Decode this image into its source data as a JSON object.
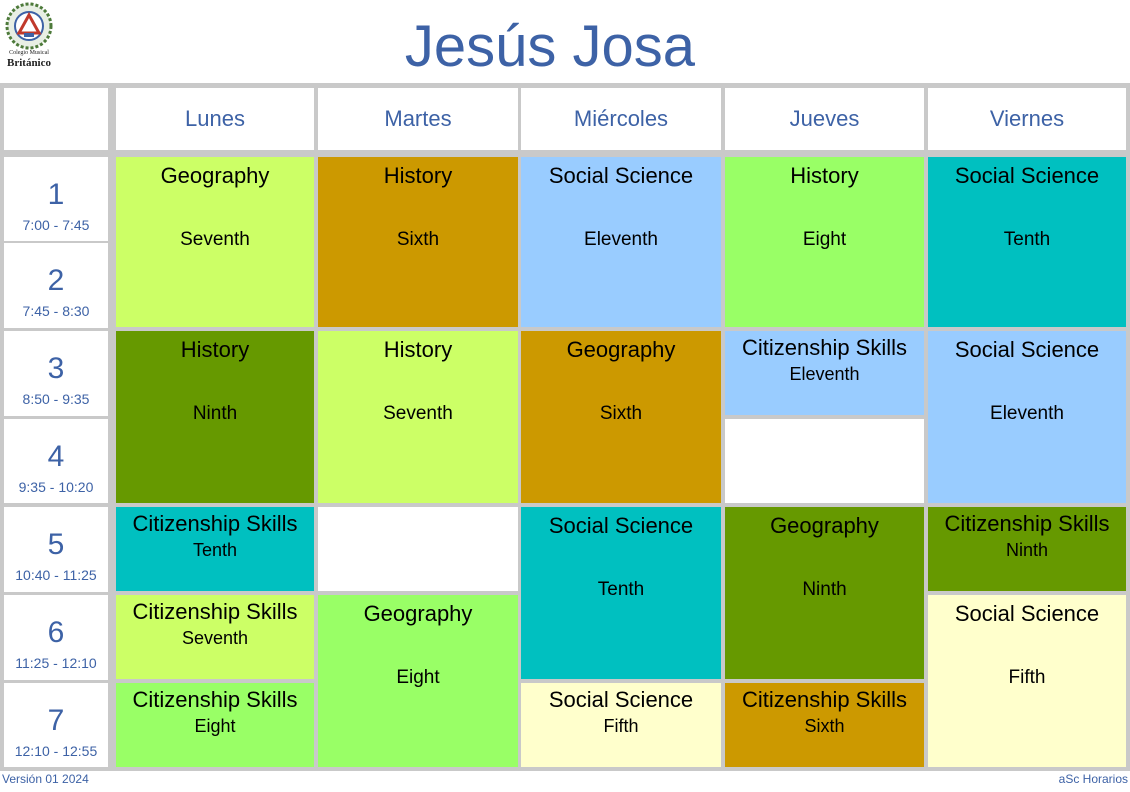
{
  "header": {
    "title": "Jesús Josa",
    "logo_line1": "Colegio Musical",
    "logo_line2": "Británico"
  },
  "days": [
    "Lunes",
    "Martes",
    "Miércoles",
    "Jueves",
    "Viernes"
  ],
  "periods": [
    {
      "num": "1",
      "time": "7:00 - 7:45"
    },
    {
      "num": "2",
      "time": "7:45 - 8:30"
    },
    {
      "num": "3",
      "time": "8:50 - 9:35"
    },
    {
      "num": "4",
      "time": "9:35 - 10:20"
    },
    {
      "num": "5",
      "time": "10:40 - 11:25"
    },
    {
      "num": "6",
      "time": "11:25 - 12:10"
    },
    {
      "num": "7",
      "time": "12:10 - 12:55"
    }
  ],
  "lessons": [
    {
      "subject": "Geography",
      "grade": "Seventh",
      "color": "#ccff66"
    },
    {
      "subject": "History",
      "grade": "Sixth",
      "color": "#cc9900"
    },
    {
      "subject": "Social Science",
      "grade": "Eleventh",
      "color": "#99ccff"
    },
    {
      "subject": "History",
      "grade": "Eight",
      "color": "#99ff66"
    },
    {
      "subject": "Social Science",
      "grade": "Tenth",
      "color": "#00c0c0"
    },
    {
      "subject": "History",
      "grade": "Ninth",
      "color": "#669900"
    },
    {
      "subject": "History",
      "grade": "Seventh",
      "color": "#ccff66"
    },
    {
      "subject": "Geography",
      "grade": "Sixth",
      "color": "#cc9900"
    },
    {
      "subject": "Citizenship Skills",
      "grade": "Eleventh",
      "color": "#99ccff"
    },
    {
      "subject": "Social Science",
      "grade": "Eleventh",
      "color": "#99ccff"
    },
    {
      "subject": "Citizenship Skills",
      "grade": "Tenth",
      "color": "#00c0c0"
    },
    {
      "subject": "Social Science",
      "grade": "Tenth",
      "color": "#00c0c0"
    },
    {
      "subject": "Geography",
      "grade": "Ninth",
      "color": "#669900"
    },
    {
      "subject": "Citizenship Skills",
      "grade": "Ninth",
      "color": "#669900"
    },
    {
      "subject": "Citizenship Skills",
      "grade": "Seventh",
      "color": "#ccff66"
    },
    {
      "subject": "Geography",
      "grade": "Eight",
      "color": "#99ff66"
    },
    {
      "subject": "Social Science",
      "grade": "Fifth",
      "color": "#ffffcc"
    },
    {
      "subject": "Citizenship Skills",
      "grade": "Eight",
      "color": "#99ff66"
    },
    {
      "subject": "Social Science",
      "grade": "Fifth",
      "color": "#ffffcc"
    },
    {
      "subject": "Citizenship Skills",
      "grade": "Sixth",
      "color": "#cc9900"
    }
  ],
  "footer": {
    "version": "Versión 01 2024",
    "brand": "aSc Horarios"
  }
}
